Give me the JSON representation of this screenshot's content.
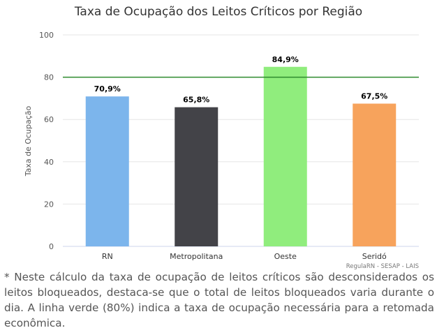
{
  "chart_data": {
    "type": "bar",
    "title": "Taxa de Ocupação dos Leitos Críticos por Região",
    "ylabel": "Taxa de Ocupação",
    "xlabel": "",
    "categories": [
      "RN",
      "Metropolitana",
      "Oeste",
      "Seridó"
    ],
    "values": [
      70.9,
      65.8,
      84.9,
      67.5
    ],
    "data_labels": [
      "70,9%",
      "65,8%",
      "84,9%",
      "67,5%"
    ],
    "bar_colors": [
      "#7cb5ec",
      "#434348",
      "#90ed7d",
      "#f7a35c"
    ],
    "ylim": [
      0,
      100
    ],
    "yticks": [
      0,
      20,
      40,
      60,
      80,
      100
    ],
    "reference_line": {
      "value": 80,
      "color": "#2e8b2e"
    },
    "grid": true,
    "legend": "none",
    "credits": "RegulaRN - SESAP - LAIS"
  },
  "footnote": "* Neste cálculo da taxa de ocupação de leitos críticos são desconsiderados os leitos bloqueados, destaca-se que o total de leitos bloqueados varia durante o dia. A linha verde (80%) indica a taxa de ocupação necessária para a retomada econômica."
}
